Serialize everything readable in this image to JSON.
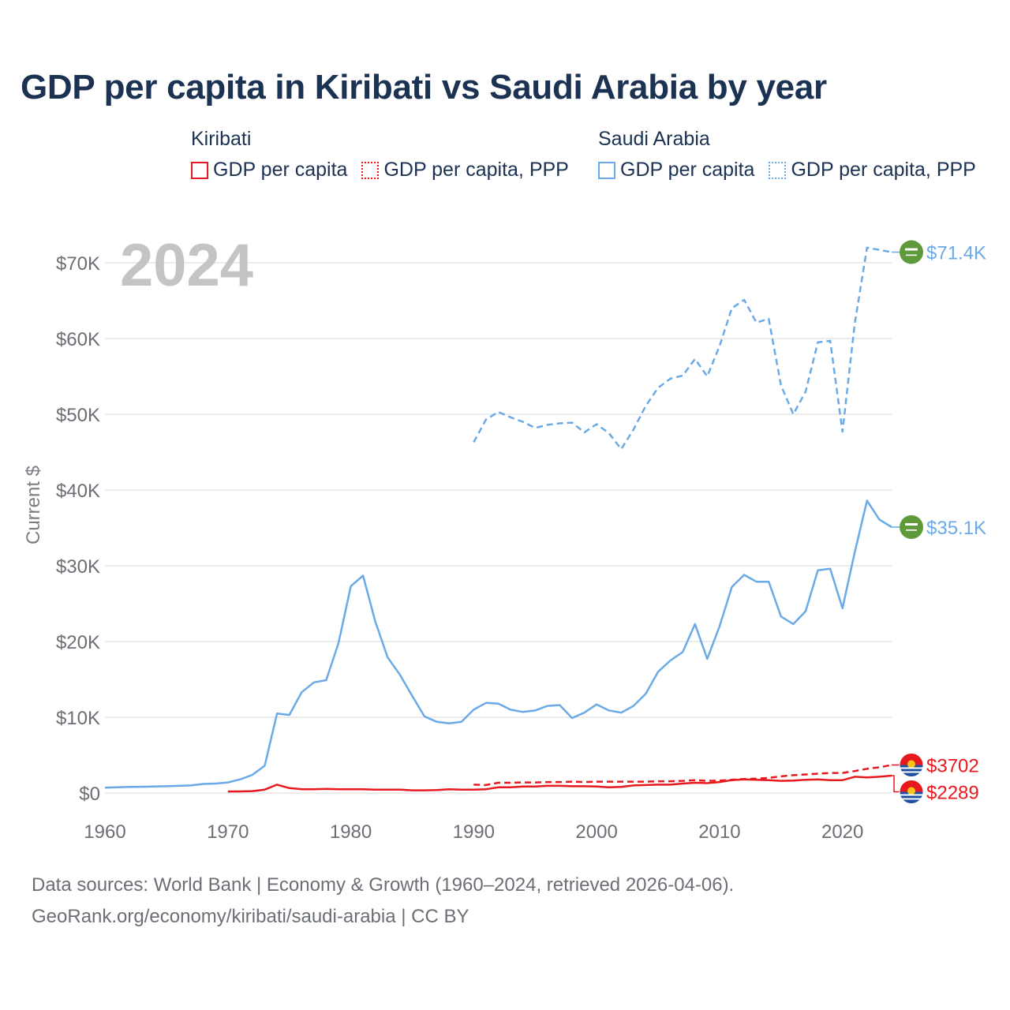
{
  "chart_data": {
    "type": "line",
    "title": "GDP per capita in Kiribati vs Saudi Arabia by year",
    "year_label": "2024",
    "ylabel": "Current $",
    "xlabel": "",
    "xlim": [
      1960,
      2024
    ],
    "ylim": [
      0,
      73000
    ],
    "x_ticks": [
      1960,
      1970,
      1980,
      1990,
      2000,
      2010,
      2020
    ],
    "y_ticks": [
      0,
      10000,
      20000,
      30000,
      40000,
      50000,
      60000,
      70000
    ],
    "y_tick_labels": [
      "$0",
      "$10K",
      "$20K",
      "$30K",
      "$40K",
      "$50K",
      "$60K",
      "$70K"
    ],
    "grid": true,
    "legend": {
      "position": "top",
      "groups": [
        {
          "country": "Kiribati",
          "items": [
            "GDP per capita",
            "GDP per capita, PPP"
          ]
        },
        {
          "country": "Saudi Arabia",
          "items": [
            "GDP per capita",
            "GDP per capita, PPP"
          ]
        }
      ]
    },
    "series": [
      {
        "name": "Saudi Arabia GDP per capita, PPP",
        "color": "#6aaae6",
        "style": "dashed",
        "end_label": "$71.4K",
        "flag": "saudi-arabia",
        "start_year": 1990,
        "values": [
          46300,
          49300,
          50300,
          49600,
          49000,
          48200,
          48600,
          48800,
          48900,
          47600,
          48700,
          47500,
          45400,
          48000,
          51100,
          53500,
          54700,
          55100,
          57300,
          55000,
          59000,
          64000,
          65100,
          62100,
          62600,
          53800,
          50000,
          53000,
          59500,
          59700,
          47700,
          62000,
          72000,
          71700,
          71400
        ]
      },
      {
        "name": "Saudi Arabia GDP per capita",
        "color": "#6aaae6",
        "style": "solid",
        "end_label": "$35.1K",
        "flag": "saudi-arabia",
        "start_year": 1960,
        "values": [
          700,
          750,
          800,
          820,
          860,
          900,
          950,
          1000,
          1200,
          1250,
          1400,
          1800,
          2400,
          3600,
          10500,
          10300,
          13300,
          14600,
          14900,
          19800,
          27300,
          28700,
          22600,
          17900,
          15600,
          12800,
          10100,
          9400,
          9200,
          9400,
          11000,
          11900,
          11800,
          11000,
          10700,
          10900,
          11500,
          11600,
          9900,
          10600,
          11700,
          10900,
          10600,
          11500,
          13100,
          16000,
          17500,
          18600,
          22300,
          17700,
          22000,
          27200,
          28800,
          27900,
          27900,
          23300,
          22300,
          24000,
          29400,
          29600,
          24400,
          31800,
          38600,
          36100,
          35100
        ]
      },
      {
        "name": "Kiribati GDP per capita, PPP",
        "color": "#e8191e",
        "style": "dashed",
        "end_label": "$3702",
        "flag": "kiribati",
        "start_year": 1990,
        "values": [
          1100,
          1050,
          1350,
          1350,
          1400,
          1400,
          1450,
          1450,
          1500,
          1450,
          1500,
          1500,
          1500,
          1500,
          1500,
          1550,
          1550,
          1600,
          1700,
          1600,
          1650,
          1750,
          1850,
          1900,
          2000,
          2200,
          2350,
          2450,
          2550,
          2650,
          2650,
          2900,
          3200,
          3400,
          3702
        ]
      },
      {
        "name": "Kiribati GDP per capita",
        "color": "#e8191e",
        "style": "solid",
        "end_label": "$2289",
        "flag": "kiribati",
        "start_year": 1970,
        "values": [
          200,
          210,
          250,
          450,
          1100,
          650,
          500,
          500,
          550,
          500,
          500,
          500,
          450,
          450,
          450,
          350,
          350,
          400,
          500,
          450,
          450,
          500,
          750,
          750,
          850,
          850,
          950,
          950,
          900,
          900,
          850,
          750,
          800,
          1000,
          1050,
          1100,
          1100,
          1250,
          1350,
          1300,
          1450,
          1700,
          1800,
          1750,
          1700,
          1600,
          1650,
          1750,
          1800,
          1700,
          1700,
          2150,
          2050,
          2150,
          2289
        ]
      }
    ]
  },
  "footer": {
    "line1": "Data sources: World Bank | Economy & Growth (1960–2024, retrieved 2026-04-06).",
    "line2": "GeoRank.org/economy/kiribati/saudi-arabia | CC BY"
  },
  "colors": {
    "kiribati": "#e8191e",
    "saudi": "#6aaae6",
    "title": "#1b3252"
  }
}
